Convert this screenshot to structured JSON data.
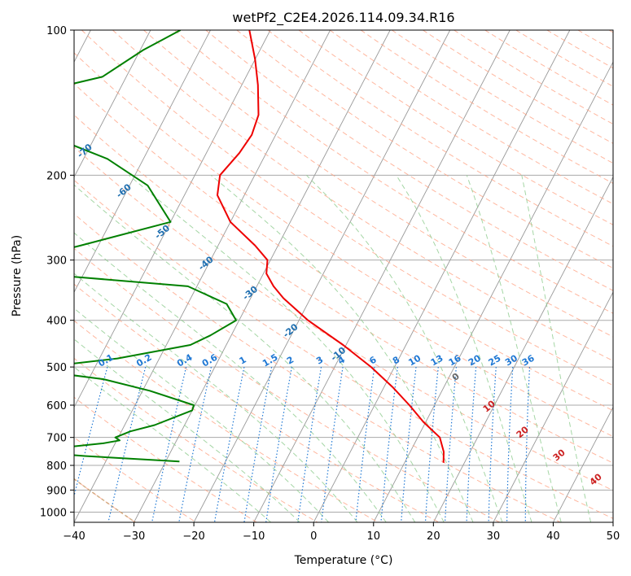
{
  "chart_data": {
    "type": "skew-t",
    "title": "wetPf2_C2E4.2026.114.09.34.R16",
    "xlabel": "Temperature (°C)",
    "ylabel": "Pressure (hPa)",
    "xlim": [
      -40,
      50
    ],
    "ylim": [
      1050,
      100
    ],
    "x_ticks": [
      -40,
      -30,
      -20,
      -10,
      0,
      10,
      20,
      30,
      40,
      50
    ],
    "y_ticks": [
      100,
      200,
      300,
      400,
      500,
      600,
      700,
      800,
      900,
      1000
    ],
    "colors": {
      "temperature": "#ee0000",
      "dewpoint": "#008000",
      "dry_adiabat": "#ff9f7f",
      "moist_adiabat": "#8fcc8f",
      "mixing_ratio": "#1f78d4",
      "isotherm": "#999999",
      "isobar": "#aaaaaa",
      "boundary": "#c8a070"
    },
    "series": [
      {
        "name": "Temperature",
        "points": [
          {
            "p": 100,
            "t": -53.5
          },
          {
            "p": 115,
            "t": -50
          },
          {
            "p": 130,
            "t": -47.3
          },
          {
            "p": 150,
            "t": -44.6
          },
          {
            "p": 165,
            "t": -44
          },
          {
            "p": 180,
            "t": -44.5
          },
          {
            "p": 200,
            "t": -45.8
          },
          {
            "p": 220,
            "t": -44.5
          },
          {
            "p": 250,
            "t": -40
          },
          {
            "p": 280,
            "t": -33.8
          },
          {
            "p": 300,
            "t": -30.5
          },
          {
            "p": 320,
            "t": -29.5
          },
          {
            "p": 340,
            "t": -27.2
          },
          {
            "p": 360,
            "t": -24.5
          },
          {
            "p": 400,
            "t": -18.5
          },
          {
            "p": 450,
            "t": -10.5
          },
          {
            "p": 500,
            "t": -3.9
          },
          {
            "p": 550,
            "t": 1.4
          },
          {
            "p": 600,
            "t": 5.8
          },
          {
            "p": 650,
            "t": 9.6
          },
          {
            "p": 700,
            "t": 13.7
          },
          {
            "p": 750,
            "t": 15.6
          },
          {
            "p": 790,
            "t": 16.5
          }
        ]
      },
      {
        "name": "Dewpoint",
        "points": [
          {
            "p": 100,
            "t": -65
          },
          {
            "p": 110,
            "t": -69.5
          },
          {
            "p": 125,
            "t": -74
          },
          {
            "p": 135,
            "t": -84
          },
          {
            "p": 145,
            "t": -81
          },
          {
            "p": 160,
            "t": -77.5
          },
          {
            "p": 170,
            "t": -75
          },
          {
            "p": 185,
            "t": -66
          },
          {
            "p": 210,
            "t": -57
          },
          {
            "p": 250,
            "t": -50
          },
          {
            "p": 280,
            "t": -63
          },
          {
            "p": 300,
            "t": -71.5
          },
          {
            "p": 320,
            "t": -68
          },
          {
            "p": 340,
            "t": -41.5
          },
          {
            "p": 370,
            "t": -33.5
          },
          {
            "p": 400,
            "t": -30.5
          },
          {
            "p": 430,
            "t": -33.5
          },
          {
            "p": 450,
            "t": -36
          },
          {
            "p": 480,
            "t": -47
          },
          {
            "p": 505,
            "t": -61.5
          },
          {
            "p": 530,
            "t": -47.5
          },
          {
            "p": 560,
            "t": -38.8
          },
          {
            "p": 600,
            "t": -30.2
          },
          {
            "p": 615,
            "t": -30
          },
          {
            "p": 660,
            "t": -35
          },
          {
            "p": 680,
            "t": -38.5
          },
          {
            "p": 700,
            "t": -40.5
          },
          {
            "p": 710,
            "t": -39.5
          },
          {
            "p": 720,
            "t": -42
          },
          {
            "p": 735,
            "t": -48.5
          },
          {
            "p": 750,
            "t": -53.5
          },
          {
            "p": 765,
            "t": -44
          },
          {
            "p": 785,
            "t": -27.7
          }
        ]
      }
    ],
    "dry_adiabat_labels": [
      "-100",
      "-90",
      "-80",
      "-70",
      "-60",
      "-50",
      "-40",
      "-30",
      "-20",
      "-10"
    ],
    "mixing_ratio_labels": [
      "0.1",
      "0.2",
      "0.4",
      "0.6",
      "1",
      "1.5",
      "2",
      "3",
      "4",
      "6",
      "8",
      "10",
      "13",
      "16",
      "20",
      "25",
      "30",
      "36"
    ],
    "moist_adiabat_labels": [
      "0",
      "10",
      "20",
      "30",
      "40"
    ]
  }
}
